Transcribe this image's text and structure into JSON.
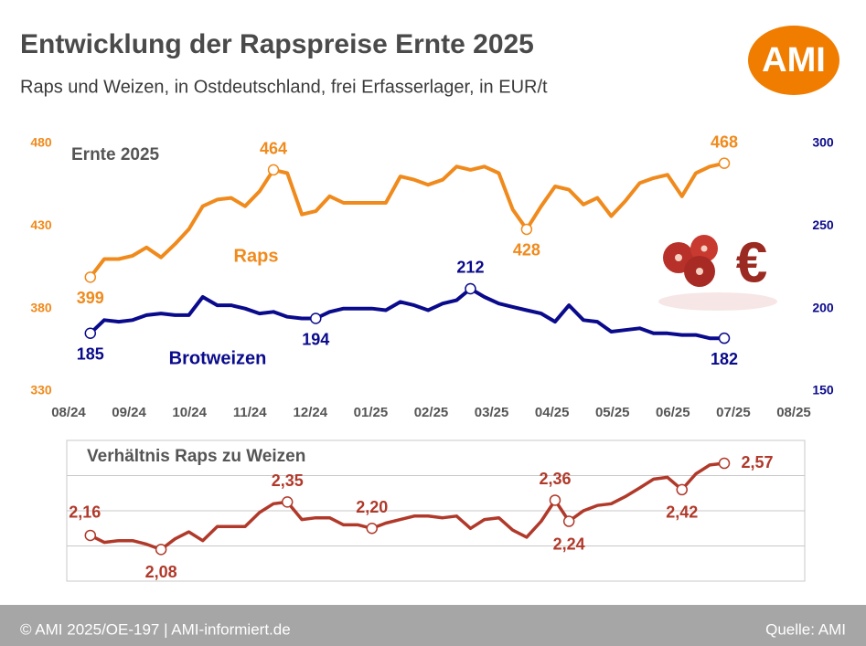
{
  "title": "Entwicklung der Rapspreise Ernte 2025",
  "subtitle": "Raps und Weizen, in Ostdeutschland, frei Erfasserlager, in EUR/t",
  "logo": "AMI",
  "footer": {
    "left": "© AMI 2025/OE-197 | AMI-informiert.de",
    "right": "Quelle: AMI"
  },
  "chart_data": [
    {
      "type": "line",
      "annotation": "Ernte 2025",
      "x": [
        0.36,
        0.59,
        0.83,
        1.06,
        1.29,
        1.53,
        1.76,
        1.99,
        2.22,
        2.46,
        2.69,
        2.92,
        3.16,
        3.39,
        3.62,
        3.86,
        4.09,
        4.32,
        4.55,
        4.79,
        5.02,
        5.25,
        5.49,
        5.72,
        5.95,
        6.19,
        6.42,
        6.65,
        6.88,
        7.12,
        7.35,
        7.58,
        7.82,
        8.05,
        8.28,
        8.52,
        8.75,
        8.98,
        9.21,
        9.45,
        9.68,
        9.91,
        10.15,
        10.38,
        10.61,
        10.85
      ],
      "xlim": [
        0,
        12
      ],
      "xticks": [
        {
          "value": 0,
          "label": "08/24"
        },
        {
          "value": 1,
          "label": "09/24"
        },
        {
          "value": 2,
          "label": "10/24"
        },
        {
          "value": 3,
          "label": "11/24"
        },
        {
          "value": 4,
          "label": "12/24"
        },
        {
          "value": 5,
          "label": "01/25"
        },
        {
          "value": 6,
          "label": "02/25"
        },
        {
          "value": 7,
          "label": "03/25"
        },
        {
          "value": 8,
          "label": "04/25"
        },
        {
          "value": 9,
          "label": "05/25"
        },
        {
          "value": 10,
          "label": "06/25"
        },
        {
          "value": 11,
          "label": "07/25"
        },
        {
          "value": 12,
          "label": "08/25"
        }
      ],
      "ylim": [
        330,
        480
      ],
      "yticks": [
        330,
        380,
        430,
        480
      ],
      "y2lim": [
        150,
        300
      ],
      "y2ticks": [
        150,
        200,
        250,
        300
      ],
      "series": [
        {
          "name": "Raps",
          "color": "#f08a1c",
          "labels_at": [
            0,
            13,
            31,
            45
          ],
          "values": [
            399,
            410,
            410,
            412,
            417,
            411,
            419,
            428,
            442,
            446,
            447,
            442,
            451,
            464,
            462,
            437,
            439,
            448,
            444,
            444,
            444,
            444,
            460,
            458,
            455,
            458,
            466,
            464,
            466,
            462,
            440,
            428,
            442,
            454,
            452,
            443,
            447,
            436,
            445,
            456,
            459,
            461,
            448,
            462,
            466,
            468
          ]
        },
        {
          "name": "Brotweizen",
          "color": "#0a0a8c",
          "axis": "y2",
          "labels_at": [
            0,
            16,
            27,
            45
          ],
          "values": [
            185,
            193,
            192,
            193,
            196,
            197,
            196,
            196,
            207,
            202,
            202,
            200,
            197,
            198,
            195,
            194,
            194,
            198,
            200,
            200,
            200,
            199,
            204,
            202,
            199,
            203,
            205,
            212,
            207,
            203,
            201,
            199,
            197,
            192,
            202,
            193,
            192,
            186,
            187,
            188,
            185,
            185,
            184,
            184,
            182,
            182
          ]
        }
      ]
    },
    {
      "type": "line",
      "title": "Verhältnis Raps zu Weizen",
      "color": "#b0392a",
      "x": [
        0.36,
        0.59,
        0.83,
        1.06,
        1.29,
        1.53,
        1.76,
        1.99,
        2.22,
        2.46,
        2.69,
        2.92,
        3.16,
        3.39,
        3.62,
        3.86,
        4.09,
        4.32,
        4.55,
        4.79,
        5.02,
        5.25,
        5.49,
        5.72,
        5.95,
        6.19,
        6.42,
        6.65,
        6.88,
        7.12,
        7.35,
        7.58,
        7.82,
        8.05,
        8.28,
        8.52,
        8.75,
        8.98,
        9.21,
        9.45,
        9.68,
        9.91,
        10.15,
        10.38,
        10.61,
        10.85
      ],
      "xlim": [
        0,
        12
      ],
      "ylim": [
        1.9,
        2.7
      ],
      "ygrid": [
        2.1,
        2.3,
        2.5
      ],
      "values": [
        2.16,
        2.12,
        2.13,
        2.13,
        2.11,
        2.08,
        2.14,
        2.18,
        2.13,
        2.21,
        2.21,
        2.21,
        2.29,
        2.34,
        2.35,
        2.25,
        2.26,
        2.26,
        2.22,
        2.22,
        2.2,
        2.23,
        2.25,
        2.27,
        2.27,
        2.26,
        2.27,
        2.2,
        2.25,
        2.26,
        2.19,
        2.15,
        2.24,
        2.36,
        2.24,
        2.3,
        2.33,
        2.34,
        2.38,
        2.43,
        2.48,
        2.49,
        2.42,
        2.51,
        2.56,
        2.57
      ],
      "value_labels": [
        "2,16",
        null,
        null,
        null,
        null,
        "2,08",
        null,
        null,
        null,
        null,
        null,
        null,
        null,
        null,
        "2,35",
        null,
        null,
        null,
        null,
        null,
        "2,20",
        null,
        null,
        null,
        null,
        null,
        null,
        null,
        null,
        null,
        null,
        null,
        null,
        "2,36",
        "2,24",
        null,
        null,
        null,
        null,
        null,
        null,
        null,
        "2,42",
        null,
        null,
        "2,57"
      ]
    }
  ]
}
